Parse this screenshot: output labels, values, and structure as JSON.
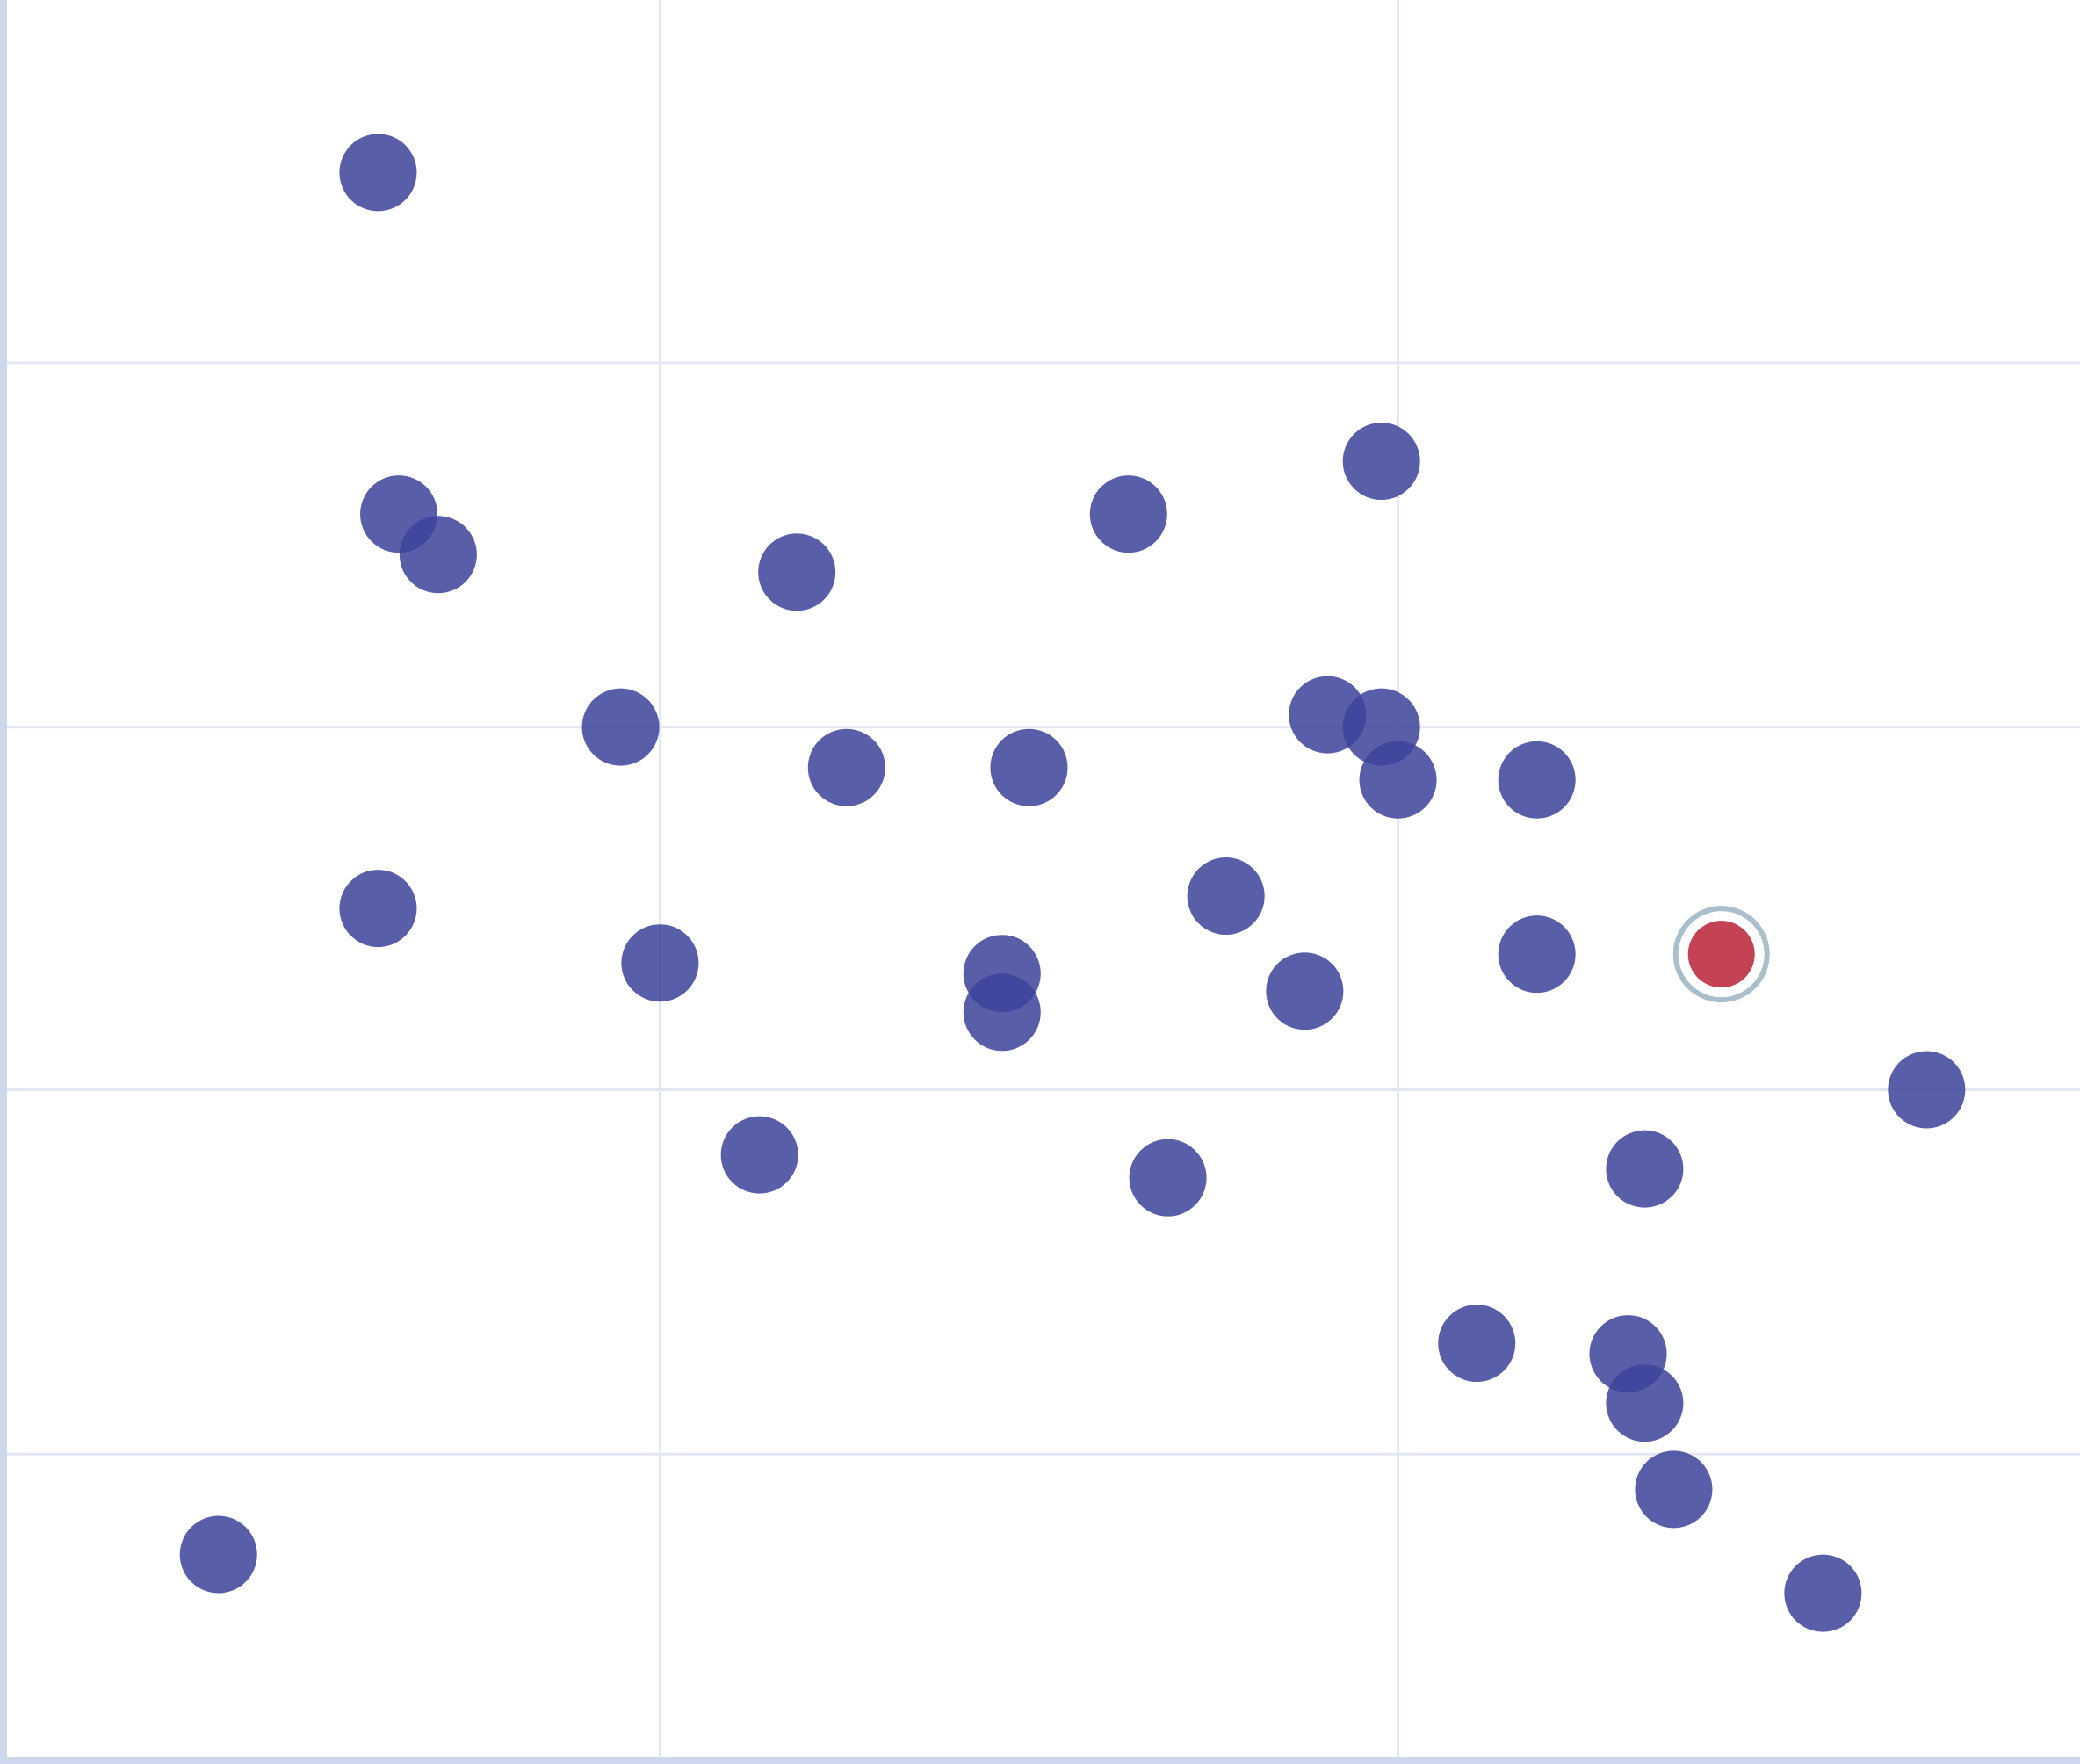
{
  "chart_data": {
    "type": "scatter",
    "title": "",
    "xlabel": "",
    "ylabel": "",
    "xlim": [
      0,
      100
    ],
    "ylim": [
      0,
      100
    ],
    "grid": true,
    "grid_x": [
      31.5,
      67.1
    ],
    "grid_y": [
      17.4,
      38.1,
      58.7,
      79.4
    ],
    "tick_labels_shown": false,
    "legend": "none",
    "colors": {
      "point": "#3d449a",
      "highlight": "#c0394b",
      "highlight_ring": "#a9bfcc",
      "axis": "#cdd8ec",
      "gridline": "#e3e7f3"
    },
    "points": [
      {
        "x": 17.9,
        "y": 90.2
      },
      {
        "x": 18.9,
        "y": 70.8
      },
      {
        "x": 20.8,
        "y": 68.5
      },
      {
        "x": 38.1,
        "y": 67.5
      },
      {
        "x": 54.1,
        "y": 70.8
      },
      {
        "x": 66.3,
        "y": 73.8
      },
      {
        "x": 29.6,
        "y": 58.7
      },
      {
        "x": 40.5,
        "y": 56.4
      },
      {
        "x": 49.3,
        "y": 56.4
      },
      {
        "x": 63.7,
        "y": 59.4
      },
      {
        "x": 66.3,
        "y": 58.7
      },
      {
        "x": 67.1,
        "y": 55.7
      },
      {
        "x": 73.8,
        "y": 55.7
      },
      {
        "x": 17.9,
        "y": 48.4
      },
      {
        "x": 31.5,
        "y": 45.3
      },
      {
        "x": 48.0,
        "y": 44.7
      },
      {
        "x": 48.0,
        "y": 42.5
      },
      {
        "x": 58.8,
        "y": 49.1
      },
      {
        "x": 62.6,
        "y": 43.7
      },
      {
        "x": 73.8,
        "y": 45.8
      },
      {
        "x": 82.7,
        "y": 45.8,
        "highlighted": true
      },
      {
        "x": 92.6,
        "y": 38.1
      },
      {
        "x": 36.3,
        "y": 34.4
      },
      {
        "x": 56.0,
        "y": 33.1
      },
      {
        "x": 79.0,
        "y": 33.6
      },
      {
        "x": 70.9,
        "y": 23.7
      },
      {
        "x": 78.2,
        "y": 23.1
      },
      {
        "x": 79.0,
        "y": 20.3
      },
      {
        "x": 80.4,
        "y": 15.4
      },
      {
        "x": 10.2,
        "y": 11.7
      },
      {
        "x": 87.6,
        "y": 9.5
      }
    ]
  }
}
